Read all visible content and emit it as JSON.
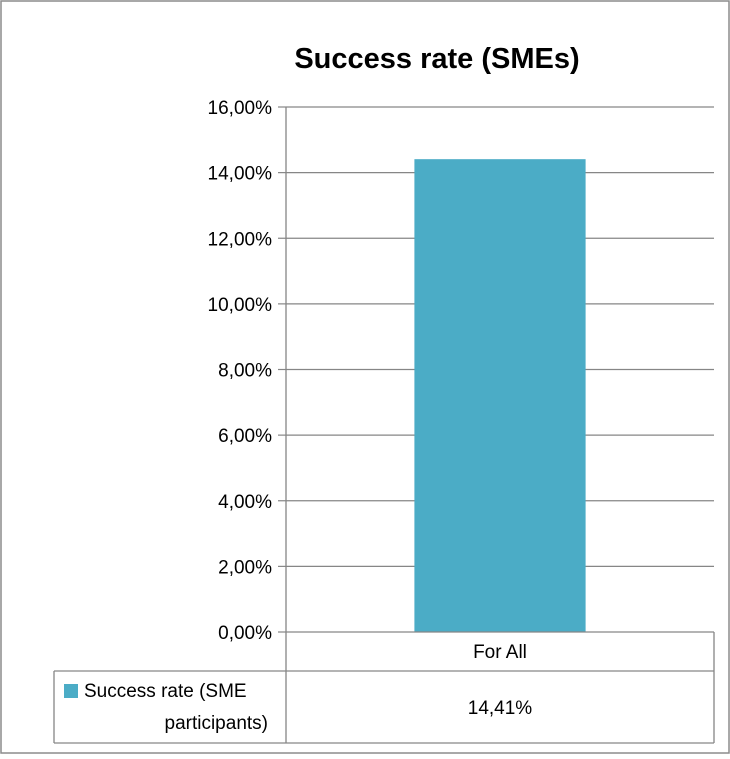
{
  "chart_data": {
    "type": "bar",
    "title": "Success rate (SMEs)",
    "categories": [
      "For All"
    ],
    "series": [
      {
        "name": "Success rate (SME participants)",
        "legend_lines": [
          "Success rate (SME",
          "participants)"
        ],
        "values": [
          0.1441
        ],
        "value_labels": [
          "14,41%"
        ],
        "color": "#4BACC6"
      }
    ],
    "ylim": [
      0,
      0.16
    ],
    "yticks": [
      0,
      0.02,
      0.04,
      0.06,
      0.08,
      0.1,
      0.12,
      0.14,
      0.16
    ],
    "ytick_labels": [
      "0,00%",
      "2,00%",
      "4,00%",
      "6,00%",
      "8,00%",
      "10,00%",
      "12,00%",
      "14,00%",
      "16,00%"
    ],
    "grid": true,
    "legend": "data-table-bottom"
  }
}
